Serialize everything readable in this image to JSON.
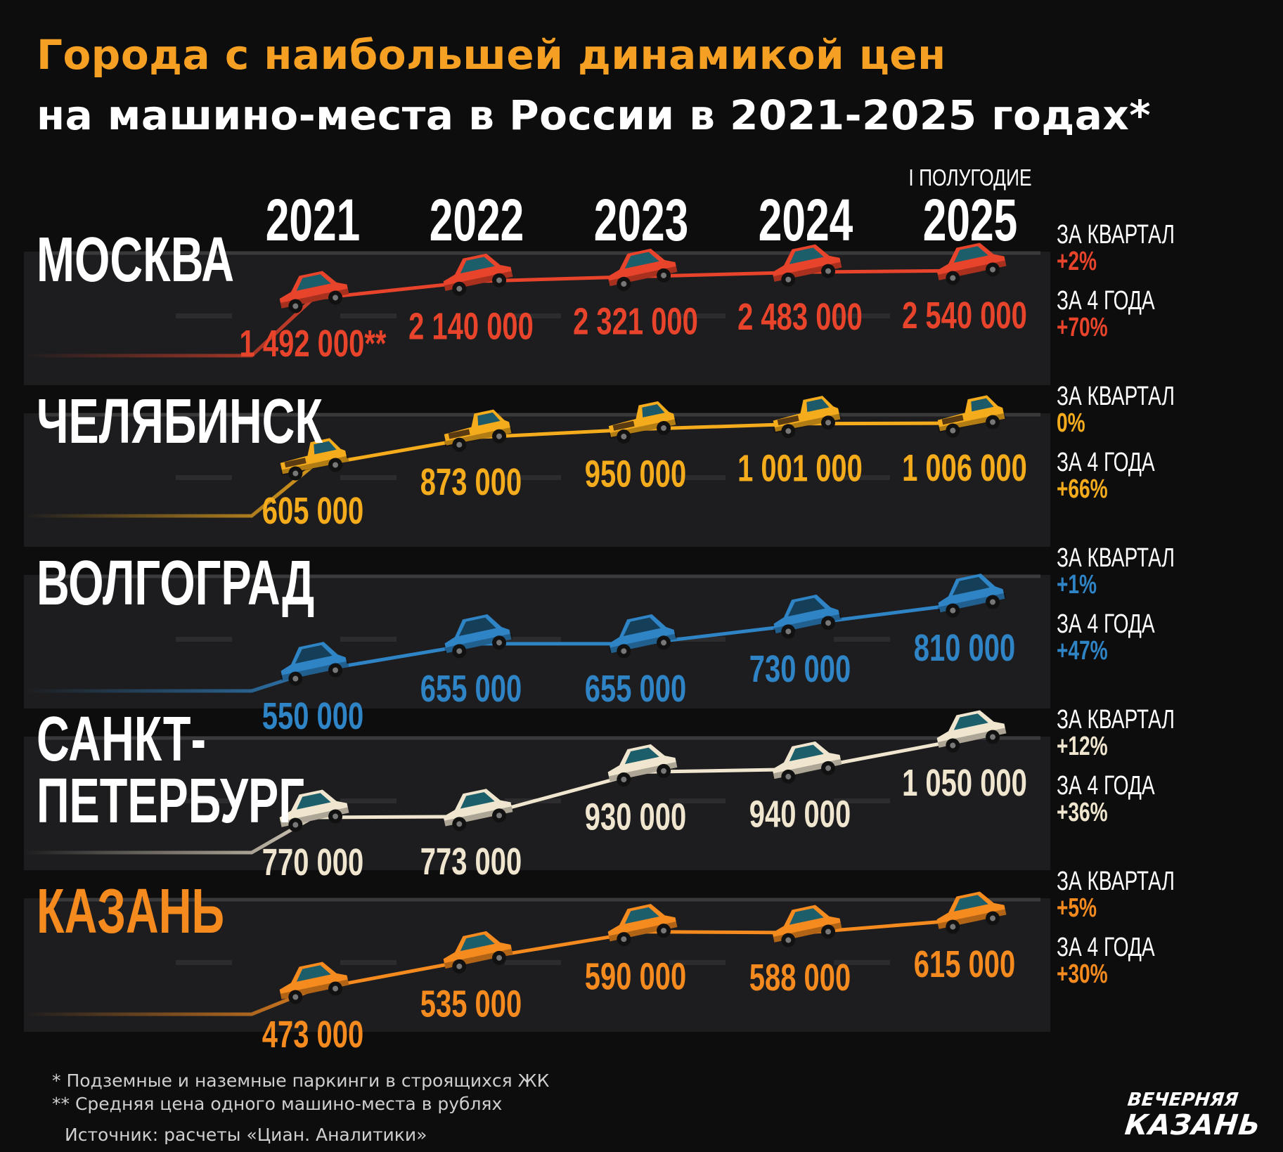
{
  "title": {
    "line1": "Города с наибольшей динамикой цен",
    "line2": "на машино-места в России в 2021-2025 годах*"
  },
  "chart_data": {
    "type": "line",
    "title": "Города с наибольшей динамикой цен на машино-места в России в 2021-2025 годах*",
    "categories": [
      "2021",
      "2022",
      "2023",
      "2024",
      "2025"
    ],
    "category_note": "I ПОЛУГОДИЕ",
    "series": [
      {
        "name": "МОСКВА",
        "color": "#e8432b",
        "car": "sedan",
        "values": [
          1492000,
          2140000,
          2321000,
          2483000,
          2540000
        ],
        "labels": [
          "1 492 000**",
          "2 140 000",
          "2 321 000",
          "2 483 000",
          "2 540 000"
        ],
        "stats": [
          {
            "label": "ЗА КВАРТАЛ",
            "value": "+2%"
          },
          {
            "label": "ЗА 4 ГОДА",
            "value": "+70%"
          }
        ]
      },
      {
        "name": "ЧЕЛЯБИНСК",
        "color": "#f5ac1c",
        "car": "pickup",
        "values": [
          605000,
          873000,
          950000,
          1001000,
          1006000
        ],
        "labels": [
          "605 000",
          "873 000",
          "950 000",
          "1 001 000",
          "1 006 000"
        ],
        "stats": [
          {
            "label": "ЗА КВАРТАЛ",
            "value": "0%"
          },
          {
            "label": "ЗА 4 ГОДА",
            "value": "+66%"
          }
        ]
      },
      {
        "name": "ВОЛГОГРАД",
        "color": "#2f84c6",
        "car": "hatchback",
        "values": [
          550000,
          655000,
          655000,
          730000,
          810000
        ],
        "labels": [
          "550 000",
          "655 000",
          "655 000",
          "730 000",
          "810 000"
        ],
        "stats": [
          {
            "label": "ЗА КВАРТАЛ",
            "value": "+1%"
          },
          {
            "label": "ЗА 4 ГОДА",
            "value": "+47%"
          }
        ]
      },
      {
        "name": "САНКТ-ПЕТЕРБУРГ",
        "name_lines": [
          "САНКТ-",
          "ПЕТЕРБУРГ"
        ],
        "color": "#f0e6d0",
        "car": "sedan",
        "values": [
          770000,
          773000,
          930000,
          940000,
          1050000
        ],
        "labels": [
          "770 000",
          "773 000",
          "930 000",
          "940 000",
          "1 050 000"
        ],
        "stats": [
          {
            "label": "ЗА КВАРТАЛ",
            "value": "+12%"
          },
          {
            "label": "ЗА 4 ГОДА",
            "value": "+36%"
          }
        ]
      },
      {
        "name": "КАЗАНЬ",
        "color": "#f58a1f",
        "car": "sedan",
        "values": [
          473000,
          535000,
          590000,
          588000,
          615000
        ],
        "labels": [
          "473 000",
          "535 000",
          "590 000",
          "588 000",
          "615 000"
        ],
        "stats": [
          {
            "label": "ЗА КВАРТАЛ",
            "value": "+5%"
          },
          {
            "label": "ЗА 4 ГОДА",
            "value": "+30%"
          }
        ]
      }
    ]
  },
  "footnotes": [
    "* Подземные и наземные паркинги в строящихся ЖК",
    "** Средняя цена одного машино-места в рублях",
    "Источник: расчеты «Циан. Аналитики»"
  ],
  "logo": {
    "line1": "ВЕЧЕРНЯЯ",
    "line2": "КАЗАНЬ"
  },
  "colors": {
    "background": "#0d0d0d",
    "title_accent": "#f5a023",
    "text": "#ffffff"
  }
}
